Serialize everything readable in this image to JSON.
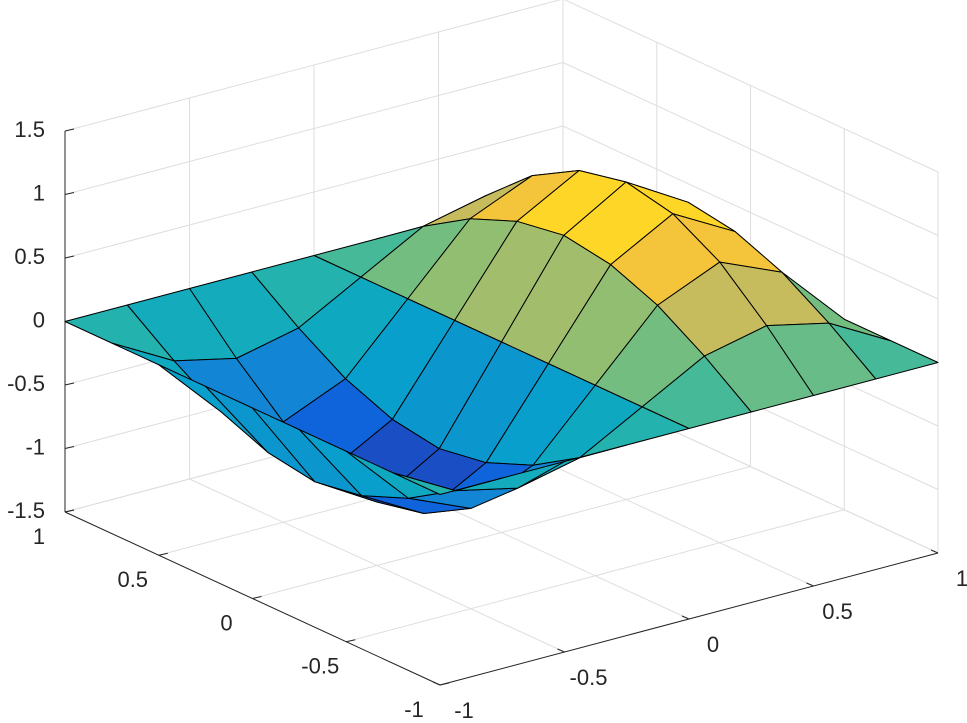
{
  "chart_data": {
    "type": "surface",
    "x": [
      -1,
      -0.75,
      -0.5,
      -0.25,
      0,
      0.25,
      0.5,
      0.75,
      1
    ],
    "y": [
      -1,
      -0.75,
      -0.5,
      -0.25,
      0,
      0.25,
      0.5,
      0.75,
      1
    ],
    "z": [
      [
        0,
        0,
        0,
        0,
        0,
        0,
        0,
        0,
        0
      ],
      [
        0,
        -0.27,
        -0.38,
        -0.27,
        0,
        0.27,
        0.38,
        0.27,
        0
      ],
      [
        0,
        -0.5,
        -0.71,
        -0.5,
        0,
        0.5,
        0.71,
        0.5,
        0
      ],
      [
        0,
        -0.65,
        -0.92,
        -0.65,
        0,
        0.65,
        0.92,
        0.65,
        0
      ],
      [
        0,
        -0.71,
        -1,
        -0.71,
        0,
        0.71,
        1,
        0.71,
        0
      ],
      [
        0,
        -0.65,
        -0.92,
        -0.65,
        0,
        0.65,
        0.92,
        0.65,
        0
      ],
      [
        0,
        -0.5,
        -0.71,
        -0.5,
        0,
        0.5,
        0.71,
        0.5,
        0
      ],
      [
        0,
        -0.27,
        -0.38,
        -0.27,
        0,
        0.27,
        0.38,
        0.27,
        0
      ],
      [
        0,
        0,
        0,
        0,
        0,
        0,
        0,
        0,
        0
      ]
    ],
    "xlim": [
      -1,
      1
    ],
    "ylim": [
      -1,
      1
    ],
    "zlim": [
      -1.5,
      1.5
    ],
    "xticks": [
      -1,
      -0.5,
      0,
      0.5,
      1
    ],
    "yticks": [
      -1,
      -0.5,
      0,
      0.5,
      1
    ],
    "zticks": [
      -1.5,
      -1,
      -0.5,
      0,
      0.5,
      1,
      1.5
    ],
    "grid": true,
    "edge_color": "#000000",
    "colormap": [
      "#352a87",
      "#0f5cdd",
      "#1481d6",
      "#06a4ca",
      "#2eb7a4",
      "#87bf77",
      "#d1bb59",
      "#fec832",
      "#f9fb0e"
    ]
  }
}
